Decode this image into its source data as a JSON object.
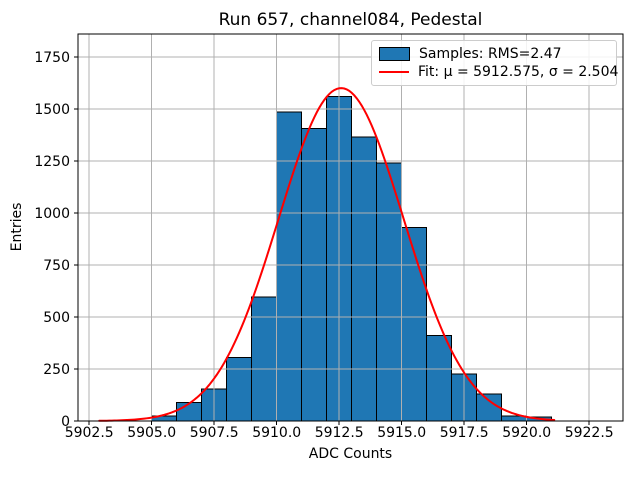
{
  "chart_data": {
    "type": "bar",
    "subtype": "histogram-with-gaussian-fit",
    "title": "Run 657, channel084, Pedestal",
    "xlabel": "ADC Counts",
    "ylabel": "Entries",
    "xlim": [
      5902.05,
      5923.85
    ],
    "ylim": [
      0,
      1860
    ],
    "xticks": [
      5902.5,
      5905.0,
      5907.5,
      5910.0,
      5912.5,
      5915.0,
      5917.5,
      5920.0,
      5922.5
    ],
    "yticks": [
      0,
      250,
      500,
      750,
      1000,
      1250,
      1500,
      1750
    ],
    "grid": true,
    "legend_position": "upper right",
    "colors": {
      "bar_fill": "#1f77b4",
      "bar_edge": "#000000",
      "fit_line": "#ff0000",
      "grid_line": "#b0b0b0",
      "axis": "#000000",
      "legend_border": "#cccccc"
    },
    "bins": [
      {
        "x0": 5905,
        "x1": 5906,
        "count": 25
      },
      {
        "x0": 5906,
        "x1": 5907,
        "count": 88
      },
      {
        "x0": 5907,
        "x1": 5908,
        "count": 155
      },
      {
        "x0": 5908,
        "x1": 5909,
        "count": 305
      },
      {
        "x0": 5909,
        "x1": 5910,
        "count": 595
      },
      {
        "x0": 5910,
        "x1": 5911,
        "count": 1485
      },
      {
        "x0": 5911,
        "x1": 5912,
        "count": 1405
      },
      {
        "x0": 5912,
        "x1": 5913,
        "count": 1560
      },
      {
        "x0": 5913,
        "x1": 5914,
        "count": 1365
      },
      {
        "x0": 5914,
        "x1": 5915,
        "count": 1240
      },
      {
        "x0": 5915,
        "x1": 5916,
        "count": 930
      },
      {
        "x0": 5916,
        "x1": 5917,
        "count": 410
      },
      {
        "x0": 5917,
        "x1": 5918,
        "count": 225
      },
      {
        "x0": 5918,
        "x1": 5919,
        "count": 130
      },
      {
        "x0": 5919,
        "x1": 5920,
        "count": 25
      },
      {
        "x0": 5920,
        "x1": 5921,
        "count": 20
      }
    ],
    "fit": {
      "mu": 5912.575,
      "sigma": 2.504,
      "amplitude": 1600,
      "x_start": 5902.9,
      "x_end": 5921.1
    },
    "legend": {
      "items": [
        {
          "swatch": "patch",
          "label": "Samples: RMS=2.47"
        },
        {
          "swatch": "line",
          "label": "Fit: μ = 5912.575, σ = 2.504"
        }
      ]
    }
  }
}
